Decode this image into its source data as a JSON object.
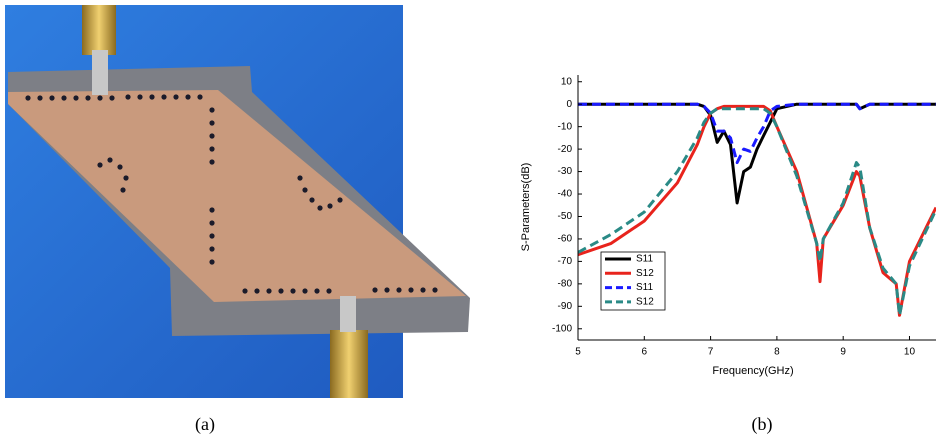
{
  "captions": [
    "(a)",
    "(b)"
  ],
  "chart_data": {
    "type": "line",
    "xlabel": "Frequency(GHz)",
    "ylabel": "S-Parameters(dB)",
    "x": [
      5,
      5.5,
      6,
      6.5,
      6.8,
      6.9,
      7.0,
      7.1,
      7.2,
      7.3,
      7.4,
      7.5,
      7.6,
      7.7,
      7.8,
      7.9,
      8.0,
      8.3,
      8.6,
      8.65,
      8.7,
      9.0,
      9.2,
      9.25,
      9.4,
      9.6,
      9.8,
      9.85,
      10.0,
      10.4
    ],
    "series": [
      {
        "name": "S11",
        "color": "#000000",
        "dashed": false,
        "values": [
          0,
          0,
          0,
          0,
          0,
          -1,
          -5,
          -17,
          -12,
          -18,
          -44,
          -30,
          -28,
          -20,
          -14,
          -8,
          -2,
          0,
          0,
          0,
          0,
          0,
          0,
          -2,
          0,
          0,
          0,
          0,
          0,
          0
        ]
      },
      {
        "name": "S12",
        "color": "#e8231c",
        "dashed": false,
        "values": [
          -67,
          -62,
          -52,
          -35,
          -18,
          -10,
          -4,
          -2,
          -1,
          -1,
          -1,
          -1,
          -1,
          -1,
          -1,
          -3,
          -10,
          -30,
          -62,
          -79,
          -60,
          -45,
          -30,
          -32,
          -55,
          -75,
          -80,
          -94,
          -70,
          -46
        ]
      },
      {
        "name": "S11",
        "color": "#1a1aff",
        "dashed": true,
        "values": [
          0,
          0,
          0,
          0,
          0,
          -1,
          -4,
          -12,
          -12,
          -15,
          -26,
          -20,
          -21,
          -15,
          -10,
          -3,
          -1,
          0,
          0,
          0,
          0,
          0,
          0,
          -2,
          0,
          0,
          0,
          0,
          0,
          0
        ]
      },
      {
        "name": "S12",
        "color": "#2a8a86",
        "dashed": true,
        "values": [
          -66,
          -58,
          -48,
          -30,
          -15,
          -8,
          -4,
          -2,
          -2,
          -2,
          -2,
          -2,
          -2,
          -2,
          -2,
          -4,
          -10,
          -32,
          -62,
          -70,
          -60,
          -44,
          -26,
          -28,
          -55,
          -73,
          -80,
          -94,
          -72,
          -47
        ]
      }
    ],
    "xlim": [
      5,
      10.4
    ],
    "xticks": [
      5,
      6,
      7,
      8,
      9,
      10
    ],
    "ylim": [
      -105,
      13
    ],
    "yticks": [
      10,
      0,
      -10,
      -20,
      -30,
      -40,
      -50,
      -60,
      -70,
      -80,
      -90,
      -100
    ],
    "legend": "lower left"
  }
}
